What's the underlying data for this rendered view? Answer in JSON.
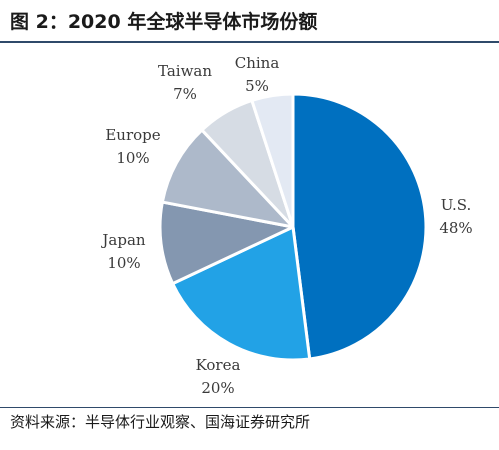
{
  "figure": {
    "title": "图 2：2020 年全球半导体市场份额",
    "source": "资料来源：半导体行业观察、国海证券研究所"
  },
  "chart_data": {
    "type": "pie",
    "title": "",
    "slices": [
      {
        "label": "U.S.",
        "value": 48,
        "value_label": "48%",
        "color": "#0070c0"
      },
      {
        "label": "Korea",
        "value": 20,
        "value_label": "20%",
        "color": "#22a2e6"
      },
      {
        "label": "Japan",
        "value": 10,
        "value_label": "10%",
        "color": "#8497b0"
      },
      {
        "label": "Europe",
        "value": 10,
        "value_label": "10%",
        "color": "#adb9ca"
      },
      {
        "label": "Taiwan",
        "value": 7,
        "value_label": "7%",
        "color": "#d6dce4"
      },
      {
        "label": "China",
        "value": 5,
        "value_label": "5%",
        "color": "#e3e9f3"
      }
    ],
    "start": "12 o'clock",
    "direction": "clockwise",
    "legend": "none"
  }
}
